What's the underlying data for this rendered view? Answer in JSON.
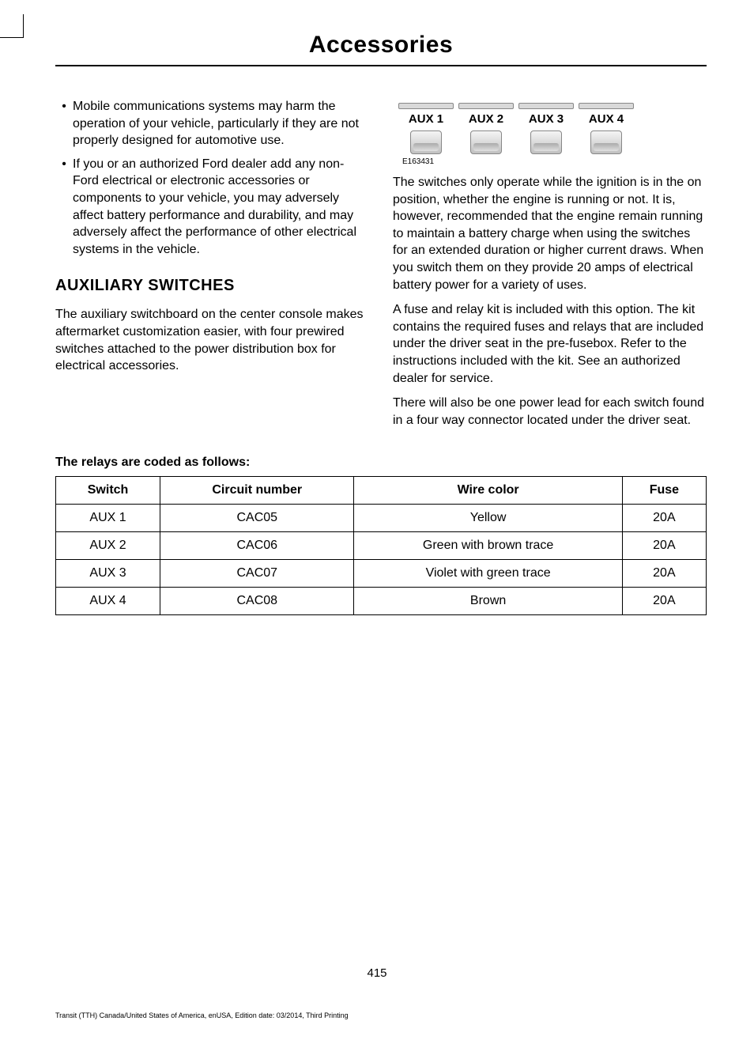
{
  "page": {
    "title": "Accessories",
    "number": "415",
    "footer": "Transit (TTH) Canada/United States of America, enUSA, Edition date: 03/2014, Third Printing"
  },
  "bullets": [
    "Mobile communications systems may harm the operation of your vehicle, particularly if they are not properly designed for automotive use.",
    "If you or an authorized Ford dealer add any non-Ford electrical or electronic accessories or components to your vehicle, you may adversely affect battery performance and durability, and may adversely affect the performance of other electrical systems in the vehicle."
  ],
  "aux_section": {
    "heading": "AUXILIARY SWITCHES",
    "intro": "The auxiliary switchboard on the center console makes aftermarket customization easier, with four prewired switches attached to the power distribution box for electrical accessories."
  },
  "figure": {
    "switches": [
      "AUX 1",
      "AUX 2",
      "AUX 3",
      "AUX 4"
    ],
    "label": "E163431"
  },
  "right_paragraphs": [
    "The switches only operate while the ignition is in the on position, whether the engine is running or not. It is, however, recommended that the engine remain running to maintain a battery charge when using the switches for an extended duration or higher current draws. When you switch them on they provide 20 amps of electrical battery power for a variety of uses.",
    "A fuse and relay kit is included with this option. The kit contains the required fuses and relays that are included under the driver seat in the pre-fusebox. Refer to the instructions included with the kit. See an authorized dealer for service.",
    "There will also be one power lead for each switch found in a four way connector located under the driver seat."
  ],
  "relay_table": {
    "heading": "The relays are coded as follows:",
    "columns": [
      "Switch",
      "Circuit number",
      "Wire color",
      "Fuse"
    ],
    "rows": [
      [
        "AUX 1",
        "CAC05",
        "Yellow",
        "20A"
      ],
      [
        "AUX 2",
        "CAC06",
        "Green with brown trace",
        "20A"
      ],
      [
        "AUX 3",
        "CAC07",
        "Violet with green trace",
        "20A"
      ],
      [
        "AUX 4",
        "CAC08",
        "Brown",
        "20A"
      ]
    ]
  },
  "styling": {
    "page_bg": "#ffffff",
    "text_color": "#000000",
    "title_fontsize": 30,
    "body_fontsize": 16,
    "heading_fontsize": 20,
    "subheading_fontsize": 16,
    "table_border_color": "#000000",
    "switch_bg_gradient_top": "#f5f5f5",
    "switch_bg_gradient_bottom": "#c0c0c0",
    "knockout_bg": "#d9d9d9"
  }
}
